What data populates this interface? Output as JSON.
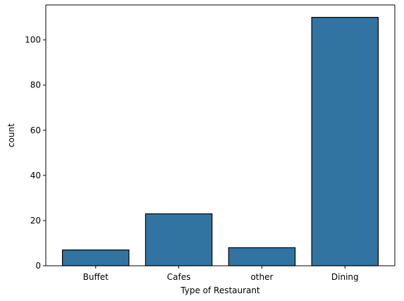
{
  "chart_data": {
    "type": "bar",
    "title": "",
    "xlabel": "Type of Restaurant",
    "ylabel": "count",
    "categories": [
      "Buffet",
      "Cafes",
      "other",
      "Dining"
    ],
    "values": [
      7,
      23,
      8,
      110
    ],
    "ylim": [
      0,
      115.5
    ],
    "yticks": [
      0,
      20,
      40,
      60,
      80,
      100
    ],
    "grid": false,
    "legend": "none",
    "colors": {
      "bar_fill": "#3274a1",
      "bar_edge": "#000000",
      "axis": "#000000",
      "background": "#ffffff"
    }
  }
}
